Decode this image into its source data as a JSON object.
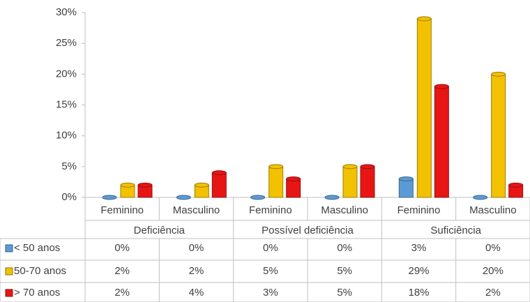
{
  "chart_data": {
    "type": "bar",
    "categories": [
      "Feminino",
      "Masculino",
      "Feminino",
      "Masculino",
      "Feminino",
      "Masculino"
    ],
    "groups": [
      "Deficiência",
      "Possível deficiência",
      "Suficiência"
    ],
    "series": [
      {
        "name": "< 50 anos",
        "color": "#5b9bd5",
        "values": [
          0,
          0,
          0,
          0,
          3,
          0
        ],
        "value_labels": [
          "0%",
          "0%",
          "0%",
          "0%",
          "3%",
          "0%"
        ]
      },
      {
        "name": "50-70 anos",
        "color": "#f2c100",
        "values": [
          2,
          2,
          5,
          5,
          29,
          20
        ],
        "value_labels": [
          "2%",
          "2%",
          "5%",
          "5%",
          "29%",
          "20%"
        ]
      },
      {
        "name": "> 70 anos",
        "color": "#e81515",
        "values": [
          2,
          4,
          3,
          5,
          18,
          2
        ],
        "value_labels": [
          "2%",
          "4%",
          "3%",
          "5%",
          "18%",
          "2%"
        ]
      }
    ],
    "ylim": [
      0,
      30
    ],
    "yticks": [
      {
        "value": 0,
        "label": "0%"
      },
      {
        "value": 5,
        "label": "5%"
      },
      {
        "value": 10,
        "label": "10%"
      },
      {
        "value": 15,
        "label": "15%"
      },
      {
        "value": 20,
        "label": "20%"
      },
      {
        "value": 25,
        "label": "25%"
      },
      {
        "value": 30,
        "label": "30%"
      }
    ],
    "grid": false
  }
}
